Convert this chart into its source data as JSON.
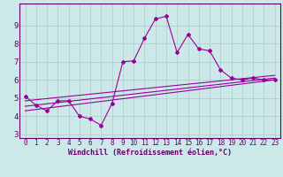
{
  "xlabel": "Windchill (Refroidissement éolien,°C)",
  "xlim": [
    -0.5,
    23.5
  ],
  "ylim": [
    2.8,
    10.2
  ],
  "xticks": [
    0,
    1,
    2,
    3,
    4,
    5,
    6,
    7,
    8,
    9,
    10,
    11,
    12,
    13,
    14,
    15,
    16,
    17,
    18,
    19,
    20,
    21,
    22,
    23
  ],
  "yticks": [
    3,
    4,
    5,
    6,
    7,
    8,
    9
  ],
  "bg_color": "#cce8e8",
  "line_color": "#990099",
  "grid_color": "#aacccc",
  "curve1_x": [
    0,
    1,
    2,
    3,
    4,
    5,
    6,
    7,
    8,
    9,
    10,
    11,
    12,
    13,
    14,
    15,
    16,
    17,
    18,
    19,
    20,
    21,
    22,
    23
  ],
  "curve1_y": [
    5.1,
    4.6,
    4.3,
    4.85,
    4.85,
    4.0,
    3.85,
    3.5,
    4.7,
    7.0,
    7.05,
    8.3,
    9.35,
    9.5,
    7.5,
    8.5,
    7.7,
    7.6,
    6.55,
    6.1,
    6.0,
    6.1,
    6.0,
    6.0
  ],
  "curve2_x": [
    0,
    23
  ],
  "curve2_y": [
    4.3,
    6.0
  ],
  "curve3_x": [
    0,
    23
  ],
  "curve3_y": [
    4.55,
    6.1
  ],
  "curve4_x": [
    0,
    23
  ],
  "curve4_y": [
    4.85,
    6.25
  ],
  "tick_color": "#660066",
  "tick_fontsize": 5.5,
  "xlabel_fontsize": 6.0,
  "marker": "D",
  "markersize": 2.0,
  "linewidth": 0.8
}
